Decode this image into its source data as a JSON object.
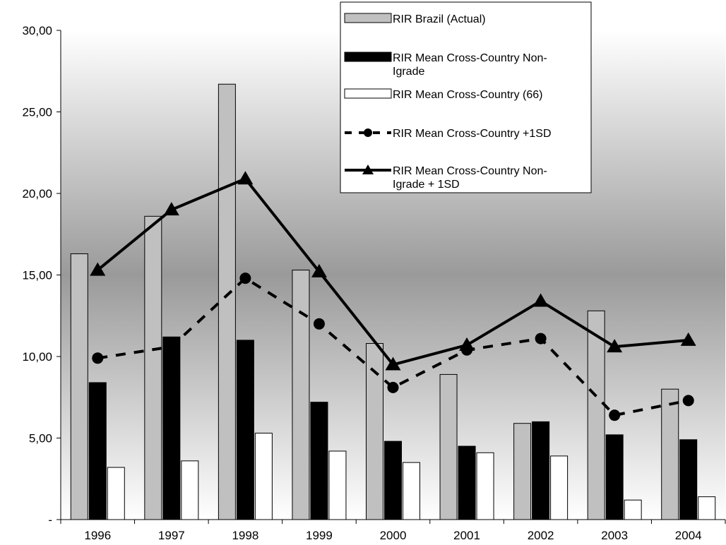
{
  "chart_data": {
    "type": "bar",
    "categories": [
      "1996",
      "1997",
      "1998",
      "1999",
      "2000",
      "2001",
      "2002",
      "2003",
      "2004"
    ],
    "ylim": [
      0,
      30
    ],
    "yticks": [
      0,
      5,
      10,
      15,
      20,
      25,
      30
    ],
    "ytick_labels": [
      "-",
      "5,00",
      "10,00",
      "15,00",
      "20,00",
      "25,00",
      "30,00"
    ],
    "series": [
      {
        "name": "RIR Brazil (Actual)",
        "kind": "bar",
        "color": "#c0c0c0",
        "values": [
          16.3,
          18.6,
          26.7,
          15.3,
          10.8,
          8.9,
          5.9,
          12.8,
          8.0
        ]
      },
      {
        "name": "RIR Mean Cross-Country Non-Igrade",
        "kind": "bar",
        "color": "#000000",
        "values": [
          8.4,
          11.2,
          11.0,
          7.2,
          4.8,
          4.5,
          6.0,
          5.2,
          4.9
        ]
      },
      {
        "name": "RIR Mean Cross-Country (66)",
        "kind": "bar",
        "color": "#ffffff",
        "values": [
          3.2,
          3.6,
          5.3,
          4.2,
          3.5,
          4.1,
          3.9,
          1.2,
          1.4
        ]
      },
      {
        "name": "RIR Mean Cross-Country +1SD",
        "kind": "line",
        "style": "dashed",
        "marker": "circle",
        "color": "#000000",
        "values": [
          9.9,
          10.6,
          14.8,
          12.0,
          8.1,
          10.4,
          11.1,
          6.4,
          7.3
        ]
      },
      {
        "name": "RIR Mean Cross-Country Non-Igrade + 1SD",
        "kind": "line",
        "style": "solid",
        "marker": "triangle",
        "color": "#000000",
        "values": [
          15.3,
          19.0,
          20.9,
          15.2,
          9.5,
          10.7,
          13.4,
          10.6,
          11.0
        ]
      }
    ],
    "legend": {
      "position": "top-center",
      "entries": [
        [
          "RIR Brazil (Actual)"
        ],
        [
          "RIR Mean Cross-Country Non-",
          "Igrade"
        ],
        [
          "RIR Mean Cross-Country (66)"
        ],
        [
          "RIR Mean Cross-Country +1SD"
        ],
        [
          "RIR Mean Cross-Country Non-",
          "Igrade + 1SD"
        ]
      ]
    },
    "background": {
      "gradient": [
        "#ffffff",
        "#9a9a9a",
        "#ffffff"
      ]
    }
  }
}
